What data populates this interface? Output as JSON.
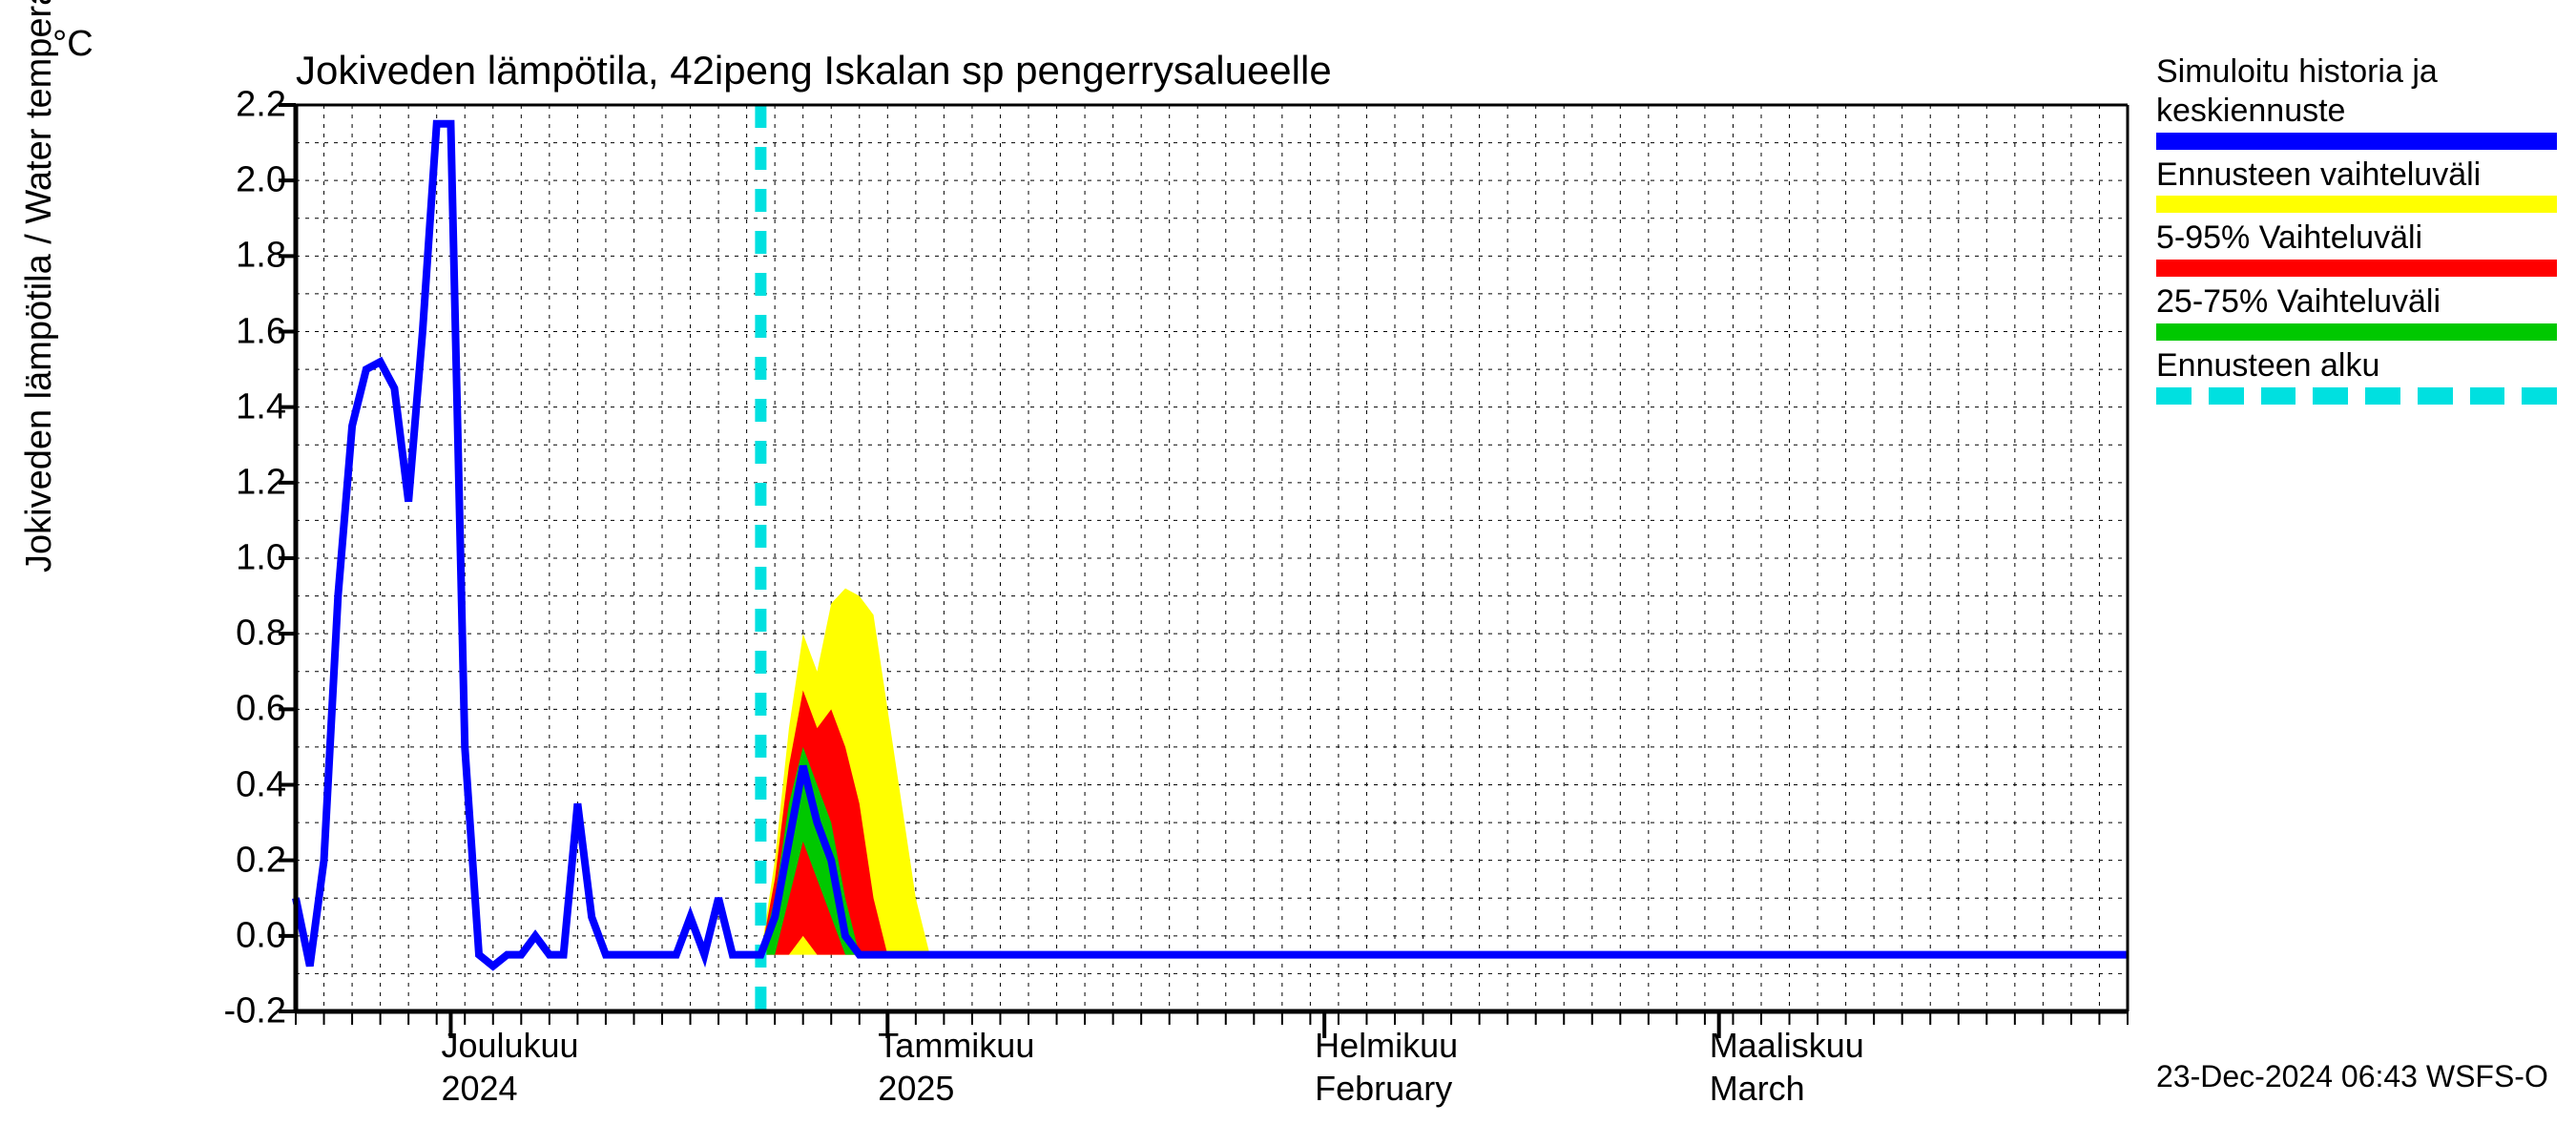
{
  "chart": {
    "type": "line-with-bands",
    "title": "Jokiveden lämpötila, 42ipeng Iskalan sp pengerrysalueelle",
    "y_axis_label": "Jokiveden lämpötila / Water temperature",
    "y_axis_unit": "°C",
    "footer": "23-Dec-2024 06:43 WSFS-O",
    "background_color": "#ffffff",
    "grid_color": "#000000",
    "grid_dash": "4,6",
    "axis_color": "#000000",
    "title_fontsize": 42,
    "label_fontsize": 38,
    "tick_fontsize": 38,
    "xlim": [
      0,
      130
    ],
    "ylim": [
      -0.2,
      2.2
    ],
    "y_ticks": [
      -0.2,
      0.0,
      0.2,
      0.4,
      0.6,
      0.8,
      1.0,
      1.2,
      1.4,
      1.6,
      1.8,
      2.0,
      2.2
    ],
    "y_minor_step": 0.1,
    "x_major_ticks": [
      {
        "x": 11,
        "label": "Joulukuu",
        "sub": "2024"
      },
      {
        "x": 42,
        "label": "Tammikuu",
        "sub": "2025"
      },
      {
        "x": 73,
        "label": "Helmikuu",
        "sub": "February"
      },
      {
        "x": 101,
        "label": "Maaliskuu",
        "sub": "March"
      }
    ],
    "x_minor_step": 2,
    "forecast_start_x": 33,
    "series": {
      "blue_line": {
        "color": "#0000ff",
        "width": 8,
        "x": [
          0,
          1,
          2,
          3,
          4,
          5,
          6,
          7,
          8,
          9,
          10,
          11,
          12,
          13,
          14,
          15,
          16,
          17,
          18,
          19,
          20,
          21,
          22,
          23,
          24,
          25,
          26,
          27,
          28,
          29,
          30,
          31,
          32,
          33,
          34,
          35,
          36,
          37,
          38,
          39,
          40,
          41,
          42,
          130
        ],
        "y": [
          0.1,
          -0.08,
          0.2,
          0.9,
          1.35,
          1.5,
          1.52,
          1.45,
          1.15,
          1.6,
          2.15,
          2.15,
          0.5,
          -0.05,
          -0.08,
          -0.05,
          -0.05,
          0.0,
          -0.05,
          -0.05,
          0.35,
          0.05,
          -0.05,
          -0.05,
          -0.05,
          -0.05,
          -0.05,
          -0.05,
          0.05,
          -0.05,
          0.1,
          -0.05,
          -0.05,
          -0.05,
          0.05,
          0.25,
          0.45,
          0.3,
          0.2,
          0.0,
          -0.05,
          -0.05,
          -0.05,
          -0.05
        ]
      },
      "green_band": {
        "color": "#00c800",
        "x": [
          33,
          34,
          35,
          36,
          37,
          38,
          39,
          40,
          41,
          42
        ],
        "low": [
          -0.05,
          -0.05,
          0.1,
          0.25,
          0.15,
          0.05,
          -0.05,
          -0.05,
          -0.05,
          -0.05
        ],
        "high": [
          -0.05,
          0.1,
          0.35,
          0.5,
          0.4,
          0.3,
          0.1,
          -0.05,
          -0.05,
          -0.05
        ]
      },
      "red_band": {
        "color": "#ff0000",
        "x": [
          33,
          34,
          35,
          36,
          37,
          38,
          39,
          40,
          41,
          42,
          43,
          44
        ],
        "low": [
          -0.05,
          -0.05,
          -0.05,
          0.0,
          -0.05,
          -0.05,
          -0.05,
          -0.05,
          -0.05,
          -0.05,
          -0.05,
          -0.05
        ],
        "high": [
          -0.05,
          0.15,
          0.45,
          0.65,
          0.55,
          0.6,
          0.5,
          0.35,
          0.1,
          -0.05,
          -0.05,
          -0.05
        ]
      },
      "yellow_band": {
        "color": "#ffff00",
        "x": [
          33,
          34,
          35,
          36,
          37,
          38,
          39,
          40,
          41,
          42,
          43,
          44,
          45,
          46,
          47
        ],
        "low": [
          -0.05,
          -0.05,
          -0.05,
          -0.05,
          -0.05,
          -0.05,
          -0.05,
          -0.05,
          -0.05,
          -0.05,
          -0.05,
          -0.05,
          -0.05,
          -0.05,
          -0.05
        ],
        "high": [
          -0.05,
          0.2,
          0.55,
          0.8,
          0.7,
          0.88,
          0.92,
          0.9,
          0.85,
          0.6,
          0.35,
          0.1,
          -0.05,
          -0.05,
          -0.05
        ]
      },
      "cyan_line": {
        "color": "#00e0e0",
        "width": 12,
        "dash": "24,20"
      }
    },
    "legend": [
      {
        "label": "Simuloitu historia ja keskiennuste",
        "color": "#0000ff",
        "style": "solid"
      },
      {
        "label": "Ennusteen vaihteluväli",
        "color": "#ffff00",
        "style": "solid"
      },
      {
        "label": "5-95% Vaihteluväli",
        "color": "#ff0000",
        "style": "solid"
      },
      {
        "label": "25-75% Vaihteluväli",
        "color": "#00c800",
        "style": "solid"
      },
      {
        "label": "Ennusteen alku",
        "color": "#00e0e0",
        "style": "dash"
      }
    ]
  }
}
